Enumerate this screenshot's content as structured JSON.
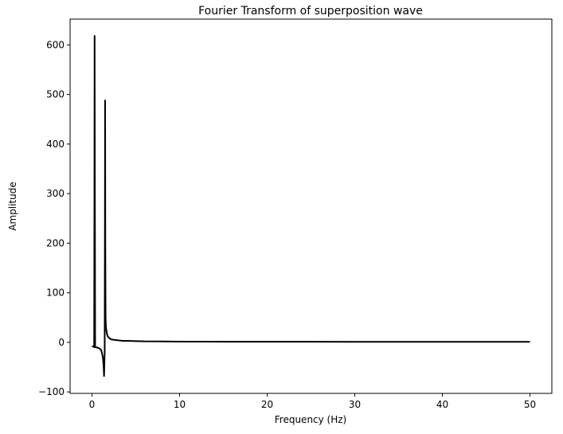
{
  "chart_data": {
    "type": "line",
    "title": "Fourier Transform of superposition wave",
    "xlabel": "Frequency (Hz)",
    "ylabel": "Amplitude",
    "xlim": [
      -2.5,
      52.5
    ],
    "ylim": [
      -103,
      652
    ],
    "xticks": [
      0,
      10,
      20,
      30,
      40,
      50
    ],
    "xtick_labels": [
      "0",
      "10",
      "20",
      "30",
      "40",
      "50"
    ],
    "yticks": [
      -100,
      0,
      100,
      200,
      300,
      400,
      500,
      600
    ],
    "ytick_labels": [
      "−100",
      "0",
      "100",
      "200",
      "300",
      "400",
      "500",
      "600"
    ],
    "grid": false,
    "series": [
      {
        "color": "#000000",
        "x": [
          0.0,
          0.1,
          0.2,
          0.25,
          0.28,
          0.3,
          0.33,
          0.36,
          0.4,
          0.5,
          0.7,
          0.9,
          1.05,
          1.15,
          1.25,
          1.32,
          1.38,
          1.45,
          1.48,
          1.5,
          1.52,
          1.55,
          1.6,
          1.7,
          1.8,
          2.0,
          2.2,
          2.5,
          3.0,
          3.5,
          4.0,
          5.0,
          6.0,
          8.0,
          10.0,
          15.0,
          20.0,
          30.0,
          40.0,
          50.0
        ],
        "y": [
          -8,
          -8,
          -9,
          -10,
          300,
          618,
          300,
          -9,
          -10,
          -10,
          -11,
          -13,
          -16,
          -22,
          -32,
          -45,
          -68,
          -20,
          250,
          488,
          200,
          50,
          30,
          18,
          12,
          8,
          6,
          5,
          4,
          3,
          3,
          2.5,
          2,
          1.8,
          1.5,
          1.3,
          1.2,
          1.1,
          1.0,
          1.0
        ]
      }
    ]
  }
}
